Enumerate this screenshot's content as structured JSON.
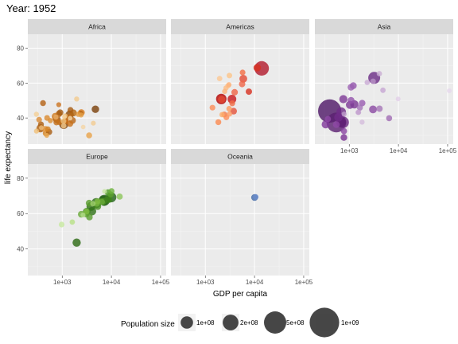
{
  "title": "Year: 1952",
  "chart_data": {
    "type": "scatter",
    "title": "Year: 1952",
    "xlabel": "GDP per capita",
    "ylabel": "life expectancy",
    "x_scale": "log10",
    "xlim": [
      200,
      130000
    ],
    "ylim": [
      25,
      88
    ],
    "x_ticks": [
      {
        "value": 1000,
        "label": "1e+03"
      },
      {
        "value": 10000,
        "label": "1e+04"
      },
      {
        "value": 100000,
        "label": "1e+05"
      }
    ],
    "y_ticks": [
      {
        "value": 40,
        "label": "40"
      },
      {
        "value": 60,
        "label": "60"
      },
      {
        "value": 80,
        "label": "80"
      }
    ],
    "legend": {
      "title": "Population size",
      "entries": [
        {
          "pop": 100000000,
          "label": "1e+08"
        },
        {
          "pop": 200000000,
          "label": "2e+08"
        },
        {
          "pop": 500000000,
          "label": "5e+08"
        },
        {
          "pop": 1000000000,
          "label": "1e+09"
        }
      ]
    },
    "facets": [
      {
        "name": "Africa",
        "points": [
          {
            "gdp": 2449,
            "life": 43.1,
            "pop": 9.3,
            "color": "#d87a1c"
          },
          {
            "gdp": 3521,
            "life": 30.0,
            "pop": 4.2,
            "color": "#e8a34a"
          },
          {
            "gdp": 1063,
            "life": 38.2,
            "pop": 1.7,
            "color": "#f0c27e"
          },
          {
            "gdp": 851,
            "life": 47.6,
            "pop": 0.4,
            "color": "#cc7420"
          },
          {
            "gdp": 543,
            "life": 32.0,
            "pop": 4.5,
            "color": "#a85c12"
          },
          {
            "gdp": 339,
            "life": 39.0,
            "pop": 2.4,
            "color": "#d98b36"
          },
          {
            "gdp": 1173,
            "life": 38.5,
            "pop": 5.0,
            "color": "#b86513"
          },
          {
            "gdp": 1071,
            "life": 35.5,
            "pop": 1.3,
            "color": "#f2c88a"
          },
          {
            "gdp": 1179,
            "life": 38.1,
            "pop": 2.7,
            "color": "#c96f1a"
          },
          {
            "gdp": 1103,
            "life": 40.7,
            "pop": 0.15,
            "color": "#f4d19b"
          },
          {
            "gdp": 781,
            "life": 39.1,
            "pop": 14.1,
            "color": "#9b5410"
          },
          {
            "gdp": 2126,
            "life": 42.1,
            "pop": 0.9,
            "color": "#e39a3d"
          },
          {
            "gdp": 1389,
            "life": 40.5,
            "pop": 2.9,
            "color": "#bf6a15"
          },
          {
            "gdp": 2670,
            "life": 34.8,
            "pop": 0.06,
            "color": "#f5d6a5"
          },
          {
            "gdp": 1419,
            "life": 41.9,
            "pop": 22.2,
            "color": "#8a4a0d"
          },
          {
            "gdp": 376,
            "life": 34.5,
            "pop": 0.2,
            "color": "#eebd7a"
          },
          {
            "gdp": 362,
            "life": 34.1,
            "pop": 20.9,
            "color": "#b0600f"
          },
          {
            "gdp": 4293,
            "life": 37.0,
            "pop": 0.4,
            "color": "#f3cc92"
          },
          {
            "gdp": 485,
            "life": 30.0,
            "pop": 0.3,
            "color": "#e7a650"
          },
          {
            "gdp": 911,
            "life": 43.1,
            "pop": 5.6,
            "color": "#a35a11"
          },
          {
            "gdp": 510,
            "life": 33.6,
            "pop": 2.7,
            "color": "#d2801f"
          },
          {
            "gdp": 300,
            "life": 32.5,
            "pop": 0.6,
            "color": "#f0c079"
          },
          {
            "gdp": 853,
            "life": 42.3,
            "pop": 6.5,
            "color": "#c06c17"
          },
          {
            "gdp": 299,
            "life": 42.1,
            "pop": 0.75,
            "color": "#f4cf96"
          },
          {
            "gdp": 576,
            "life": 38.5,
            "pop": 0.9,
            "color": "#dc8d2f"
          },
          {
            "gdp": 2387,
            "life": 42.7,
            "pop": 1.0,
            "color": "#b46412"
          },
          {
            "gdp": 1443,
            "life": 36.7,
            "pop": 4.8,
            "color": "#c87119"
          },
          {
            "gdp": 369,
            "life": 36.3,
            "pop": 2.9,
            "color": "#ab5e10"
          },
          {
            "gdp": 452,
            "life": 33.7,
            "pop": 3.8,
            "color": "#e49b43"
          },
          {
            "gdp": 743,
            "life": 40.5,
            "pop": 1.0,
            "color": "#eab06a"
          },
          {
            "gdp": 1967,
            "life": 50.9,
            "pop": 0.5,
            "color": "#f2ca8e"
          },
          {
            "gdp": 1688,
            "life": 42.9,
            "pop": 9.9,
            "color": "#b5660f"
          },
          {
            "gdp": 469,
            "life": 31.3,
            "pop": 6.4,
            "color": "#d38324"
          },
          {
            "gdp": 2424,
            "life": 41.7,
            "pop": 0.5,
            "color": "#e3a048"
          },
          {
            "gdp": 762,
            "life": 37.4,
            "pop": 3.4,
            "color": "#c4701b"
          },
          {
            "gdp": 1077,
            "life": 36.3,
            "pop": 33.1,
            "color": "#7d420b"
          },
          {
            "gdp": 493,
            "life": 40.0,
            "pop": 2.5,
            "color": "#d98a2e"
          },
          {
            "gdp": 879,
            "life": 37.5,
            "pop": 2.8,
            "color": "#c57018"
          },
          {
            "gdp": 1450,
            "life": 39.9,
            "pop": 0.06,
            "color": "#f6d9aa"
          },
          {
            "gdp": 4725,
            "life": 45.0,
            "pop": 14.3,
            "color": "#7a400a"
          },
          {
            "gdp": 1615,
            "life": 38.6,
            "pop": 8.5,
            "color": "#b96715"
          },
          {
            "gdp": 1148,
            "life": 41.2,
            "pop": 0.3,
            "color": "#efbf7c"
          },
          {
            "gdp": 717,
            "life": 41.0,
            "pop": 8.3,
            "color": "#cf7d22"
          },
          {
            "gdp": 1469,
            "life": 44.6,
            "pop": 3.6,
            "color": "#a95c12"
          },
          {
            "gdp": 734,
            "life": 39.9,
            "pop": 5.8,
            "color": "#c36d19"
          },
          {
            "gdp": 407,
            "life": 48.5,
            "pop": 3.1,
            "color": "#b46214"
          }
        ]
      },
      {
        "name": "Americas",
        "points": [
          {
            "gdp": 5911,
            "life": 62.5,
            "pop": 17.9,
            "color": "#e34a33"
          },
          {
            "gdp": 2677,
            "life": 40.4,
            "pop": 2.9,
            "color": "#fc8d59"
          },
          {
            "gdp": 2109,
            "life": 50.9,
            "pop": 56.6,
            "color": "#b30000"
          },
          {
            "gdp": 11367,
            "life": 68.8,
            "pop": 14.8,
            "color": "#d7301f"
          },
          {
            "gdp": 3940,
            "life": 54.7,
            "pop": 6.4,
            "color": "#ef6548"
          },
          {
            "gdp": 2144,
            "life": 50.6,
            "pop": 12.4,
            "color": "#e34a33"
          },
          {
            "gdp": 2627,
            "life": 57.2,
            "pop": 0.9,
            "color": "#fdbb84"
          },
          {
            "gdp": 5587,
            "life": 59.4,
            "pop": 6.0,
            "color": "#ef6548"
          },
          {
            "gdp": 1398,
            "life": 45.9,
            "pop": 2.5,
            "color": "#fc8d59"
          },
          {
            "gdp": 3522,
            "life": 48.4,
            "pop": 3.5,
            "color": "#f16d45"
          },
          {
            "gdp": 3048,
            "life": 45.3,
            "pop": 2.0,
            "color": "#fd9a5c"
          },
          {
            "gdp": 2428,
            "life": 42.0,
            "pop": 3.1,
            "color": "#f47c4c"
          },
          {
            "gdp": 1840,
            "life": 37.6,
            "pop": 3.2,
            "color": "#fb8a50"
          },
          {
            "gdp": 2194,
            "life": 41.9,
            "pop": 1.5,
            "color": "#fdae6b"
          },
          {
            "gdp": 2898,
            "life": 58.5,
            "pop": 1.4,
            "color": "#fdc08a"
          },
          {
            "gdp": 3478,
            "life": 50.8,
            "pop": 30.1,
            "color": "#c8171b"
          },
          {
            "gdp": 3112,
            "life": 42.3,
            "pop": 1.2,
            "color": "#fc9e66"
          },
          {
            "gdp": 2480,
            "life": 55.2,
            "pop": 0.9,
            "color": "#fdb57c"
          },
          {
            "gdp": 1952,
            "life": 62.6,
            "pop": 1.6,
            "color": "#fdc894"
          },
          {
            "gdp": 3759,
            "life": 43.9,
            "pop": 8.0,
            "color": "#e5533b"
          },
          {
            "gdp": 3082,
            "life": 64.3,
            "pop": 2.2,
            "color": "#fdc488"
          },
          {
            "gdp": 3023,
            "life": 59.1,
            "pop": 0.7,
            "color": "#fcb17a"
          },
          {
            "gdp": 13990,
            "life": 68.4,
            "pop": 157.6,
            "color": "#b2182b"
          },
          {
            "gdp": 5717,
            "life": 66.1,
            "pop": 2.3,
            "color": "#f46d43"
          },
          {
            "gdp": 7690,
            "life": 55.1,
            "pop": 5.4,
            "color": "#d7301f"
          }
        ]
      },
      {
        "name": "Asia",
        "points": [
          {
            "gdp": 779,
            "life": 28.8,
            "pop": 8.4,
            "color": "#7b3294"
          },
          {
            "gdp": 9867,
            "life": 50.9,
            "pop": 0.12,
            "color": "#e2d0e8"
          },
          {
            "gdp": 684,
            "life": 37.5,
            "pop": 46.9,
            "color": "#5e1f73"
          },
          {
            "gdp": 368,
            "life": 39.4,
            "pop": 4.7,
            "color": "#8e4aa6"
          },
          {
            "gdp": 400,
            "life": 44.0,
            "pop": 556.3,
            "color": "#4d1666"
          },
          {
            "gdp": 3054,
            "life": 61.0,
            "pop": 2.1,
            "color": "#b893c6"
          },
          {
            "gdp": 547,
            "life": 37.4,
            "pop": 372.0,
            "color": "#5a1f70"
          },
          {
            "gdp": 750,
            "life": 37.5,
            "pop": 82.1,
            "color": "#6b2982"
          },
          {
            "gdp": 3035,
            "life": 44.9,
            "pop": 17.3,
            "color": "#8b4aa3"
          },
          {
            "gdp": 4130,
            "life": 45.3,
            "pop": 5.4,
            "color": "#a677b8"
          },
          {
            "gdp": 4087,
            "life": 65.4,
            "pop": 1.6,
            "color": "#c9aed3"
          },
          {
            "gdp": 3217,
            "life": 63.0,
            "pop": 86.5,
            "color": "#6a2a84"
          },
          {
            "gdp": 1547,
            "life": 43.2,
            "pop": 0.6,
            "color": "#c4a3d0"
          },
          {
            "gdp": 1088,
            "life": 50.1,
            "pop": 8.9,
            "color": "#9354ab"
          },
          {
            "gdp": 1031,
            "life": 47.5,
            "pop": 20.9,
            "color": "#7c3a95"
          },
          {
            "gdp": 108382,
            "life": 55.6,
            "pop": 0.16,
            "color": "#e6d8ec"
          },
          {
            "gdp": 4835,
            "life": 55.9,
            "pop": 1.4,
            "color": "#c7a6d3"
          },
          {
            "gdp": 1831,
            "life": 48.5,
            "pop": 6.7,
            "color": "#9a5db1"
          },
          {
            "gdp": 786,
            "life": 42.2,
            "pop": 0.8,
            "color": "#c1a0cd"
          },
          {
            "gdp": 331,
            "life": 36.3,
            "pop": 20.1,
            "color": "#80389a"
          },
          {
            "gdp": 546,
            "life": 36.2,
            "pop": 9.2,
            "color": "#8e49a6"
          },
          {
            "gdp": 1828,
            "life": 37.6,
            "pop": 0.5,
            "color": "#d4bddc"
          },
          {
            "gdp": 685,
            "life": 43.4,
            "pop": 41.3,
            "color": "#6f2c88"
          },
          {
            "gdp": 1273,
            "life": 47.8,
            "pop": 22.4,
            "color": "#7a3693"
          },
          {
            "gdp": 6460,
            "life": 39.9,
            "pop": 4.0,
            "color": "#a06cb3"
          },
          {
            "gdp": 2315,
            "life": 60.4,
            "pop": 1.1,
            "color": "#c9aad5"
          },
          {
            "gdp": 1083,
            "life": 57.6,
            "pop": 7.98,
            "color": "#9b60b2"
          },
          {
            "gdp": 1643,
            "life": 45.9,
            "pop": 3.7,
            "color": "#a473b8"
          },
          {
            "gdp": 1207,
            "life": 58.5,
            "pop": 8.6,
            "color": "#9458ad"
          },
          {
            "gdp": 758,
            "life": 50.8,
            "pop": 21.3,
            "color": "#7d3896"
          },
          {
            "gdp": 605,
            "life": 40.4,
            "pop": 26.2,
            "color": "#702d89"
          },
          {
            "gdp": 1516,
            "life": 43.2,
            "pop": 1.0,
            "color": "#c7a5d2"
          },
          {
            "gdp": 782,
            "life": 32.5,
            "pop": 4.96,
            "color": "#8c46a4"
          }
        ]
      },
      {
        "name": "Europe",
        "points": [
          {
            "gdp": 1601,
            "life": 55.2,
            "pop": 1.3,
            "color": "#b8e186"
          },
          {
            "gdp": 6137,
            "life": 66.8,
            "pop": 6.9,
            "color": "#4d9221"
          },
          {
            "gdp": 8343,
            "life": 68.0,
            "pop": 8.7,
            "color": "#3f7f1b"
          },
          {
            "gdp": 974,
            "life": 53.8,
            "pop": 2.8,
            "color": "#c7e9a0"
          },
          {
            "gdp": 2444,
            "life": 59.6,
            "pop": 7.3,
            "color": "#6aaa3a"
          },
          {
            "gdp": 3119,
            "life": 61.2,
            "pop": 3.9,
            "color": "#7fbc41"
          },
          {
            "gdp": 6876,
            "life": 66.9,
            "pop": 9.1,
            "color": "#4d9221"
          },
          {
            "gdp": 9692,
            "life": 70.8,
            "pop": 4.3,
            "color": "#5aa02c"
          },
          {
            "gdp": 6424,
            "life": 66.6,
            "pop": 4.1,
            "color": "#68a83a"
          },
          {
            "gdp": 7030,
            "life": 67.4,
            "pop": 42.5,
            "color": "#276419"
          },
          {
            "gdp": 7144,
            "life": 67.5,
            "pop": 69.1,
            "color": "#1f5c12"
          },
          {
            "gdp": 3531,
            "life": 65.9,
            "pop": 7.7,
            "color": "#5a9e2e"
          },
          {
            "gdp": 5264,
            "life": 64.0,
            "pop": 9.5,
            "color": "#4a8f22"
          },
          {
            "gdp": 7268,
            "life": 72.5,
            "pop": 0.15,
            "color": "#c8e6a3"
          },
          {
            "gdp": 5210,
            "life": 66.9,
            "pop": 3.0,
            "color": "#7fbc41"
          },
          {
            "gdp": 4931,
            "life": 65.9,
            "pop": 47.7,
            "color": "#2c6b18"
          },
          {
            "gdp": 2648,
            "life": 59.2,
            "pop": 0.4,
            "color": "#b3dd88"
          },
          {
            "gdp": 8942,
            "life": 68.0,
            "pop": 10.4,
            "color": "#3e8a1e"
          },
          {
            "gdp": 10095,
            "life": 72.7,
            "pop": 3.3,
            "color": "#6cb23c"
          },
          {
            "gdp": 4029,
            "life": 61.3,
            "pop": 25.7,
            "color": "#2f7216"
          },
          {
            "gdp": 3068,
            "life": 59.8,
            "pop": 8.5,
            "color": "#5fa431"
          },
          {
            "gdp": 3145,
            "life": 61.1,
            "pop": 16.6,
            "color": "#3f8320"
          },
          {
            "gdp": 3581,
            "life": 58.0,
            "pop": 6.9,
            "color": "#5b9d2f"
          },
          {
            "gdp": 5074,
            "life": 65.6,
            "pop": 3.5,
            "color": "#75b43f"
          },
          {
            "gdp": 4215,
            "life": 65.6,
            "pop": 1.5,
            "color": "#a1d06e"
          },
          {
            "gdp": 3834,
            "life": 64.0,
            "pop": 28.5,
            "color": "#2f6f17"
          },
          {
            "gdp": 8528,
            "life": 71.9,
            "pop": 7.1,
            "color": "#4c9a24"
          },
          {
            "gdp": 14734,
            "life": 69.6,
            "pop": 4.8,
            "color": "#8cc55a"
          },
          {
            "gdp": 1969,
            "life": 43.6,
            "pop": 22.2,
            "color": "#2d6a14"
          },
          {
            "gdp": 9980,
            "life": 69.2,
            "pop": 50.4,
            "color": "#226216"
          }
        ]
      },
      {
        "name": "Oceania",
        "points": [
          {
            "gdp": 10040,
            "life": 69.1,
            "pop": 8.7,
            "color": "#4169a8"
          },
          {
            "gdp": 10557,
            "life": 69.4,
            "pop": 1.99,
            "color": "#6a8ccc"
          }
        ]
      }
    ]
  }
}
